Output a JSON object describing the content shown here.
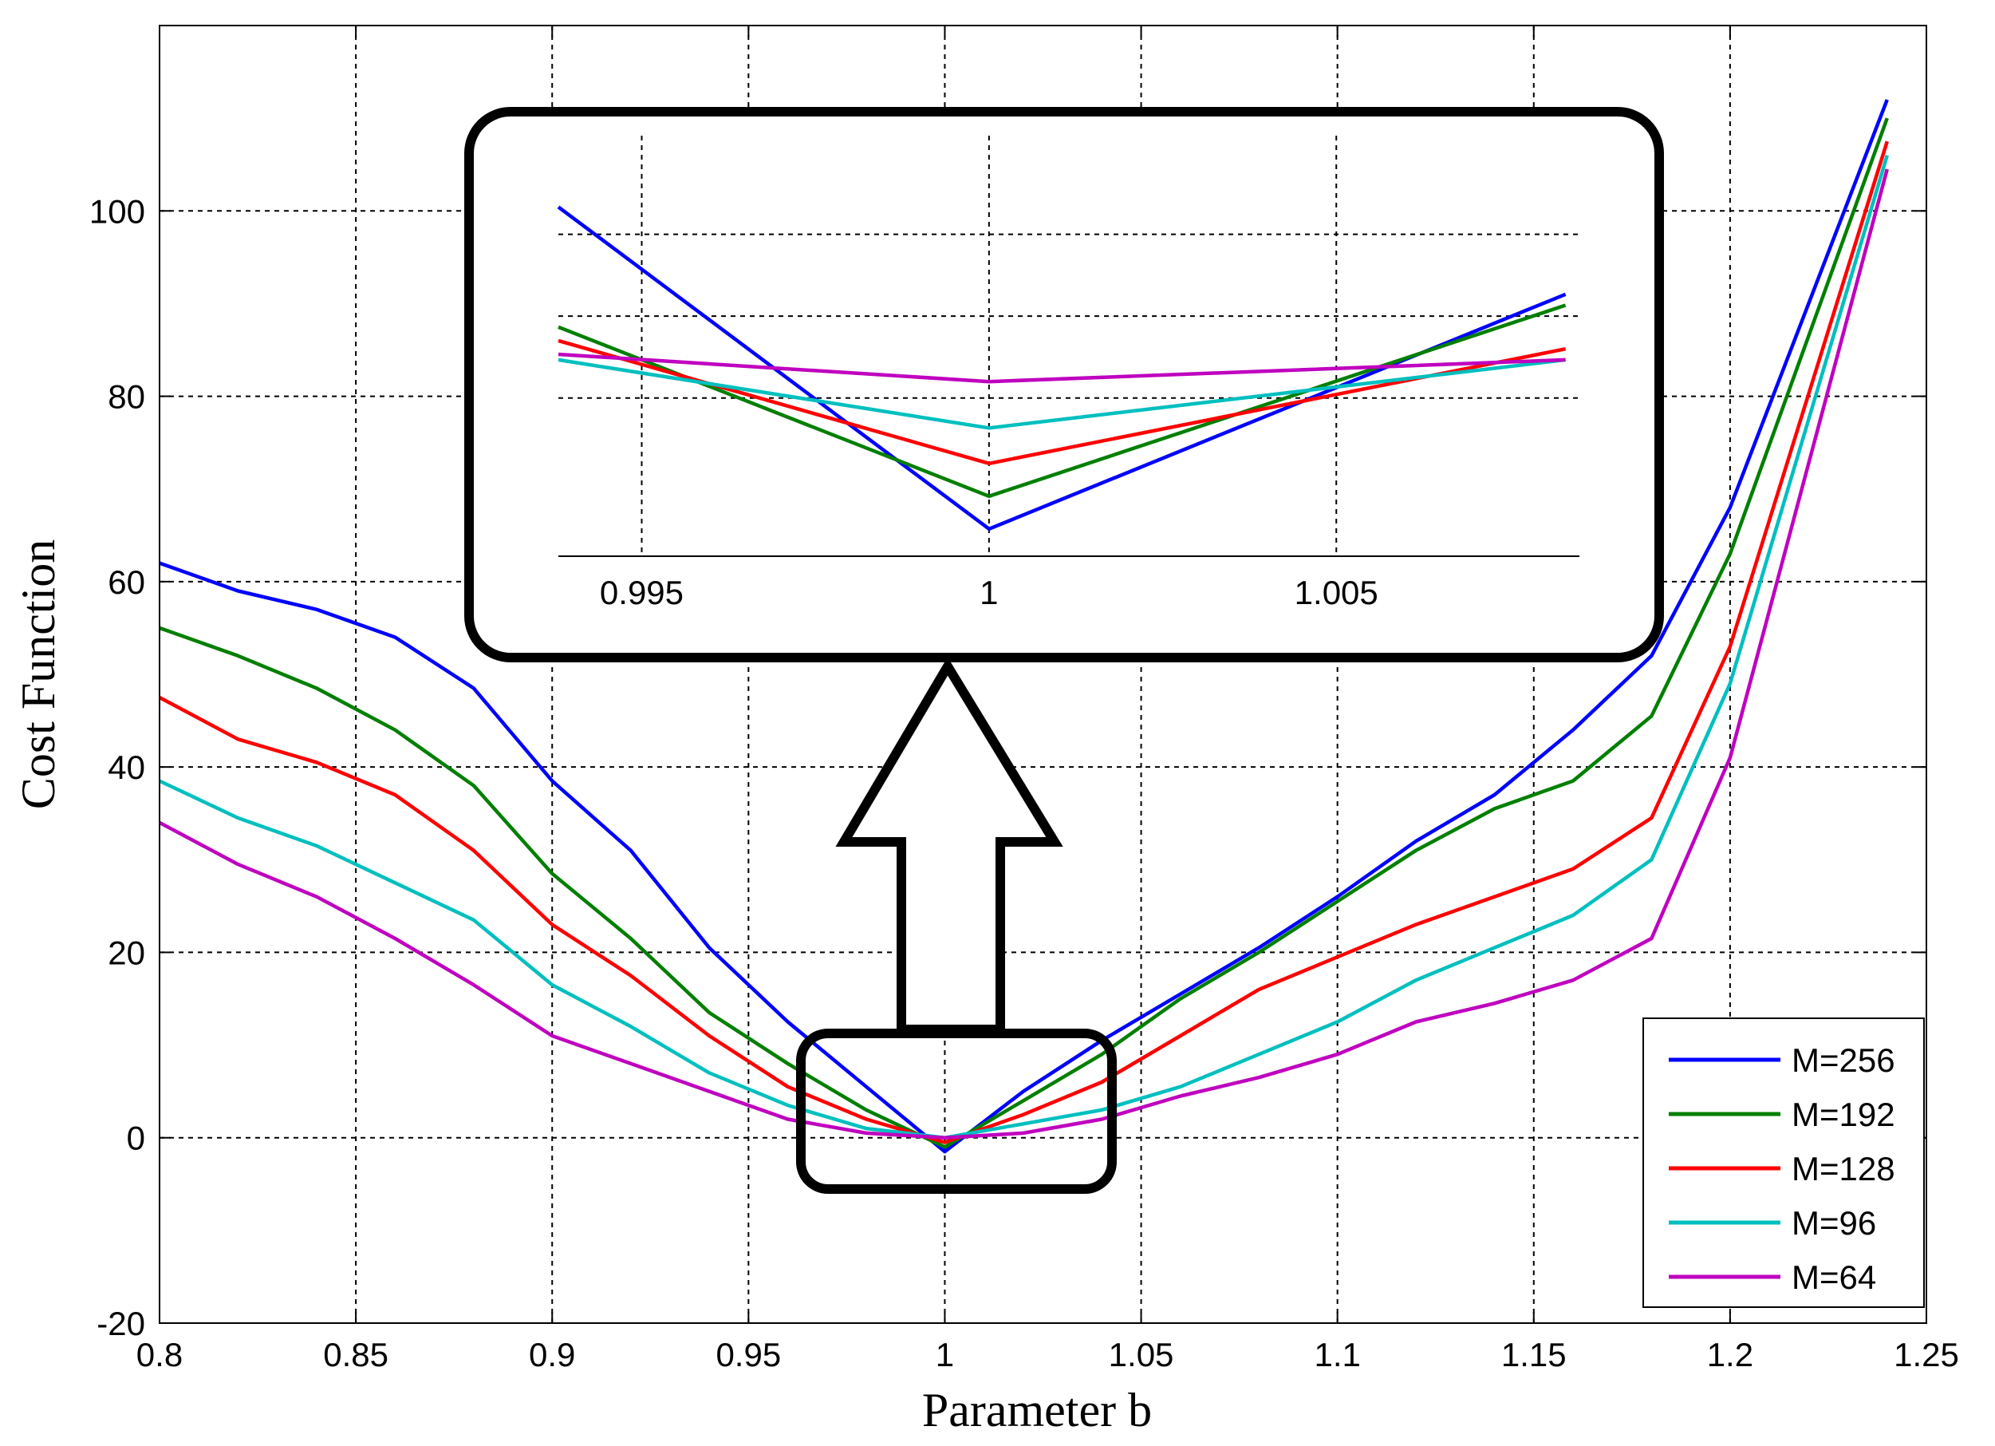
{
  "chart_data": {
    "type": "line",
    "title": "",
    "xlabel": "Parameter b",
    "ylabel": "Cost Function",
    "xlim": [
      0.8,
      1.25
    ],
    "ylim": [
      -20,
      120
    ],
    "xticks": [
      "0.8",
      "0.85",
      "0.9",
      "0.95",
      "1",
      "1.05",
      "1.1",
      "1.15",
      "1.2",
      "1.25"
    ],
    "yticks": [
      "-20",
      "0",
      "20",
      "40",
      "60",
      "80",
      "100"
    ],
    "grid": true,
    "legend": "bottom-right",
    "x": [
      0.8,
      0.82,
      0.84,
      0.86,
      0.88,
      0.9,
      0.92,
      0.94,
      0.96,
      0.98,
      1.0,
      1.02,
      1.04,
      1.06,
      1.08,
      1.1,
      1.12,
      1.14,
      1.16,
      1.18,
      1.2,
      1.24
    ],
    "series": [
      {
        "name": "M=256",
        "color": "#0000ff",
        "values": [
          62,
          59,
          57,
          54,
          48.5,
          38.5,
          31,
          20.5,
          12.5,
          5.5,
          -1.5,
          5,
          10.5,
          15.5,
          20.5,
          26,
          32,
          37,
          44,
          52,
          68,
          112
        ]
      },
      {
        "name": "M=192",
        "color": "#007f00",
        "values": [
          55,
          52,
          48.5,
          44,
          38,
          28.5,
          21.5,
          13.5,
          8,
          3,
          -1,
          4,
          9,
          15,
          20,
          25.5,
          31,
          35.5,
          38.5,
          45.5,
          63,
          110
        ]
      },
      {
        "name": "M=128",
        "color": "#ff0000",
        "values": [
          47.5,
          43,
          40.5,
          37,
          31,
          23,
          17.5,
          11,
          5.5,
          2,
          -0.5,
          2.5,
          6,
          11,
          16,
          19.5,
          23,
          26,
          29,
          34.5,
          53,
          107.5
        ]
      },
      {
        "name": "M=96",
        "color": "#00bfbf",
        "values": [
          38.5,
          34.5,
          31.5,
          27.5,
          23.5,
          16.5,
          12,
          7,
          3.5,
          1,
          0,
          1.5,
          3,
          5.5,
          9,
          12.5,
          17,
          20.5,
          24,
          30,
          49,
          106
        ]
      },
      {
        "name": "M=64",
        "color": "#bf00bf",
        "values": [
          34,
          29.5,
          26,
          21.5,
          16.5,
          11,
          8,
          5,
          2,
          0.5,
          0,
          0.5,
          2,
          4.5,
          6.5,
          9,
          12.5,
          14.5,
          17,
          21.5,
          41,
          104.5
        ]
      }
    ],
    "inset": {
      "xlim": [
        0.9938,
        1.0085
      ],
      "xticks": [
        "0.995",
        "1",
        "1.005"
      ],
      "ylim": [
        -2,
        6
      ],
      "x": [
        0.9938,
        1.0,
        1.0083
      ],
      "series": [
        {
          "name": "M=256",
          "values": [
            4.4,
            -1.5,
            2.8
          ]
        },
        {
          "name": "M=192",
          "values": [
            2.2,
            -0.9,
            2.6
          ]
        },
        {
          "name": "M=128",
          "values": [
            1.95,
            -0.3,
            1.8
          ]
        },
        {
          "name": "M=96",
          "values": [
            1.6,
            0.35,
            1.6
          ]
        },
        {
          "name": "M=64",
          "values": [
            1.7,
            1.2,
            1.6
          ]
        }
      ]
    }
  }
}
